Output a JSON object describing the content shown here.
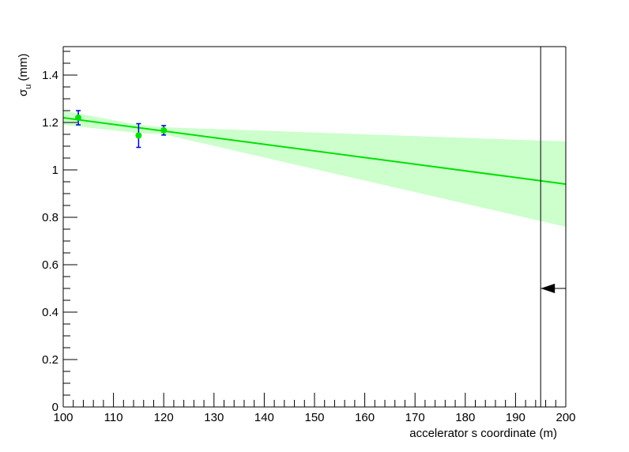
{
  "chart_data": {
    "type": "scatter",
    "xlabel": "accelerator s coordinate (m)",
    "ylabel": "σ",
    "ylabel_subscript": "u",
    "ylabel_unit": "(mm)",
    "xlim": [
      100,
      200
    ],
    "ylim": [
      0,
      1.52
    ],
    "x_ticks": [
      100,
      110,
      120,
      130,
      140,
      150,
      160,
      170,
      180,
      190,
      200
    ],
    "y_ticks": [
      0,
      0.2,
      0.4,
      0.6,
      0.8,
      1,
      1.2,
      1.4
    ],
    "y_tick_labels": [
      "0",
      "0.2",
      "0.4",
      "0.6",
      "0.8",
      "1",
      "1.2",
      "1.4"
    ],
    "grid": false,
    "points": [
      {
        "x": 103,
        "y": 1.22,
        "yerr": 0.03
      },
      {
        "x": 115,
        "y": 1.145,
        "yerr": 0.05
      },
      {
        "x": 120,
        "y": 1.167,
        "yerr": 0.02
      }
    ],
    "fit_line": {
      "x": [
        100,
        200
      ],
      "y": [
        1.22,
        0.94
      ]
    },
    "confidence_band": {
      "x": [
        100,
        115,
        120,
        200
      ],
      "upper": [
        1.25,
        1.19,
        1.18,
        1.12
      ],
      "lower": [
        1.19,
        1.155,
        1.15,
        0.76
      ]
    },
    "marker_line_x": 195,
    "marker_arrow_y": 0.5,
    "colors": {
      "fit": "#00e000",
      "band": "#ccffcc",
      "points": "#00e000",
      "error_bars": "#0000cc",
      "axes": "#000000"
    }
  }
}
